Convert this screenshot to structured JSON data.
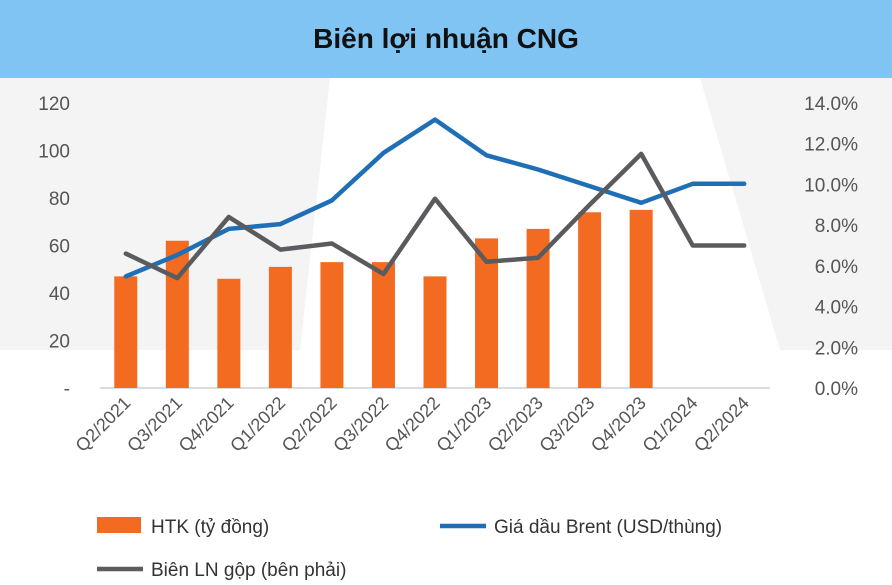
{
  "chart_data": {
    "title": "Biên lợi nhuận CNG",
    "type": "bar+line",
    "categories": [
      "Q2/2021",
      "Q3/2021",
      "Q4/2021",
      "Q1/2022",
      "Q2/2022",
      "Q3/2022",
      "Q4/2022",
      "Q1/2023",
      "Q2/2023",
      "Q3/2023",
      "Q4/2023",
      "Q1/2024",
      "Q2/2024"
    ],
    "left_axis": {
      "ylim": [
        0,
        120
      ],
      "ticks": [
        "-",
        "20",
        "40",
        "60",
        "80",
        "100",
        "120"
      ]
    },
    "right_axis": {
      "ylim": [
        0,
        0.14
      ],
      "ticks": [
        "0.0%",
        "2.0%",
        "4.0%",
        "6.0%",
        "8.0%",
        "10.0%",
        "12.0%",
        "14.0%"
      ]
    },
    "series": [
      {
        "name": "HTK (tỷ đồng)",
        "type": "bar",
        "axis": "left",
        "color": "#f26b21",
        "values": [
          47,
          62,
          46,
          51,
          53,
          53,
          47,
          63,
          67,
          74,
          75,
          null,
          null
        ]
      },
      {
        "name": "Giá dầu Brent (USD/thùng)",
        "type": "line",
        "axis": "left",
        "color": "#1f6fb6",
        "values": [
          47,
          56,
          67,
          69,
          79,
          99,
          113,
          98,
          92,
          85,
          78,
          86,
          86
        ]
      },
      {
        "name": "Biên LN gộp (bên phải)",
        "type": "line",
        "axis": "right",
        "color": "#5a5b5e",
        "values": [
          0.066,
          0.054,
          0.084,
          0.068,
          0.071,
          0.056,
          0.093,
          0.062,
          0.064,
          0.09,
          0.115,
          0.07,
          0.07
        ]
      }
    ],
    "grid": false,
    "legend_position": "bottom"
  }
}
